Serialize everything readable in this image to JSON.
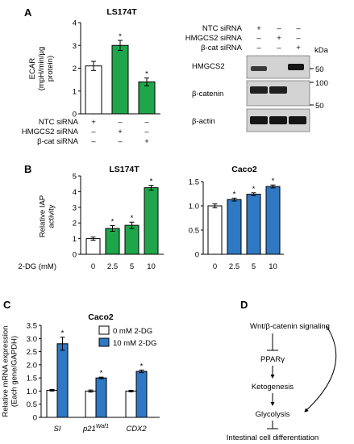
{
  "panels": {
    "a": "A",
    "b": "B",
    "c": "C",
    "d": "D"
  },
  "colors": {
    "white": "#ffffff",
    "green": "#1fa64a",
    "blue": "#2f78c4",
    "blot_bg": "#d3d3d3",
    "band": "#2a2a2a"
  },
  "chart_data": [
    {
      "id": "a",
      "type": "bar",
      "title": "LS174T",
      "ylabel": [
        "ECAR",
        "(mpH/min/µg",
        "protein)"
      ],
      "ylim": [
        0,
        4
      ],
      "yticks": [
        0,
        1,
        2,
        3,
        4
      ],
      "values": [
        2.1,
        3.0,
        1.4
      ],
      "errors": [
        0.2,
        0.22,
        0.17
      ],
      "colors": [
        "#ffffff",
        "#1fa64a",
        "#1fa64a"
      ],
      "sig": [
        "",
        "*",
        "*"
      ],
      "conditions": [
        {
          "label": "NTC siRNA",
          "marks": [
            "+",
            "–",
            "–"
          ]
        },
        {
          "label": "HMGCS2 siRNA",
          "marks": [
            "–",
            "+",
            "–"
          ]
        },
        {
          "label": "β-cat siRNA",
          "marks": [
            "–",
            "–",
            "+"
          ]
        }
      ]
    },
    {
      "id": "b1",
      "type": "bar",
      "title": "LS174T",
      "ylabel": [
        "Relative IAP",
        "activity"
      ],
      "xlabel": "2-DG (mM)",
      "categories": [
        "0",
        "2.5",
        "5",
        "10"
      ],
      "ylim": [
        0,
        5
      ],
      "yticks": [
        0,
        1,
        2,
        3,
        4,
        5
      ],
      "values": [
        1.0,
        1.65,
        1.85,
        4.25
      ],
      "errors": [
        0.1,
        0.18,
        0.2,
        0.15
      ],
      "colors": [
        "#ffffff",
        "#1fa64a",
        "#1fa64a",
        "#1fa64a"
      ],
      "sig": [
        "",
        "*",
        "*",
        "*"
      ]
    },
    {
      "id": "b2",
      "type": "bar",
      "title": "Caco2",
      "categories": [
        "0",
        "2.5",
        "5",
        "10"
      ],
      "ylim": [
        0,
        1.5
      ],
      "yticks": [
        0,
        0.5,
        1.0,
        1.5
      ],
      "ytick_labels": [
        "0",
        "0.5",
        "1.0",
        "1.5"
      ],
      "values": [
        1.0,
        1.13,
        1.24,
        1.4
      ],
      "errors": [
        0.04,
        0.03,
        0.03,
        0.03
      ],
      "colors": [
        "#ffffff",
        "#2f78c4",
        "#2f78c4",
        "#2f78c4"
      ],
      "sig": [
        "",
        "*",
        "*",
        "*"
      ]
    },
    {
      "id": "c",
      "type": "bar",
      "title": "Caco2",
      "ylabel": [
        "Relative mRNA expression",
        "(Each gene/GAPDH)"
      ],
      "categories": [
        "SI",
        "p21Waf1",
        "CDX2"
      ],
      "ylim": [
        0,
        3.5
      ],
      "yticks": [
        0,
        0.5,
        1.0,
        1.5,
        2.0,
        2.5,
        3.0,
        3.5
      ],
      "ytick_labels": [
        "0",
        "0.5",
        "1.0",
        "1.5",
        "2.0",
        "2.5",
        "3.0",
        "3.5"
      ],
      "series": [
        {
          "name": "0 mM 2-DG",
          "color": "#ffffff",
          "values": [
            1.03,
            1.0,
            1.0
          ],
          "errors": [
            0.03,
            0.04,
            0.03
          ],
          "sig": [
            "",
            "",
            ""
          ]
        },
        {
          "name": "10 mM 2-DG",
          "color": "#2f78c4",
          "values": [
            2.8,
            1.5,
            1.75
          ],
          "errors": [
            0.25,
            0.03,
            0.05
          ],
          "sig": [
            "*",
            "*",
            "*"
          ]
        }
      ],
      "legend": "top-right"
    }
  ],
  "blot": {
    "conditions": [
      {
        "label": "NTC siRNA",
        "marks": [
          "+",
          "–",
          "–"
        ]
      },
      {
        "label": "HMGCS2 siRNA",
        "marks": [
          "–",
          "+",
          "–"
        ]
      },
      {
        "label": "β-cat siRNA",
        "marks": [
          "–",
          "–",
          "+"
        ]
      }
    ],
    "kda": "kDa",
    "rows": [
      {
        "name": "HMGCS2",
        "markers": [
          "50"
        ]
      },
      {
        "name": "β-catenin",
        "markers": [
          "100",
          "50"
        ]
      },
      {
        "name": "β-actin",
        "markers": []
      }
    ]
  },
  "pathway": {
    "top": "Wnt/β-catenin signaling",
    "n2": "PPARγ",
    "n3": "Ketogenesis",
    "n4": "Glycolysis",
    "n5": "Intestinal cell differentiation"
  }
}
